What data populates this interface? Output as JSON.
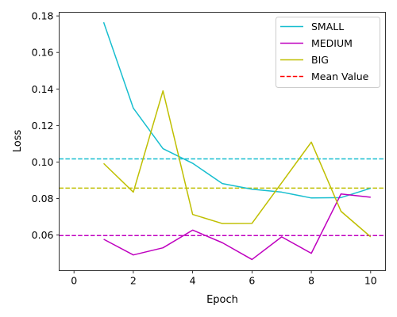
{
  "chart_data": {
    "type": "line",
    "title": "",
    "xlabel": "Epoch",
    "ylabel": "Loss",
    "xlim": [
      -0.5,
      10.5
    ],
    "ylim": [
      0.0405,
      0.182
    ],
    "x_ticks": [
      0,
      2,
      4,
      6,
      8,
      10
    ],
    "y_ticks": [
      0.06,
      0.08,
      0.1,
      0.12,
      0.14,
      0.16,
      0.18
    ],
    "y_tick_labels": [
      "0.06",
      "0.08",
      "0.10",
      "0.12",
      "0.14",
      "0.16",
      "0.18"
    ],
    "grid": false,
    "legend_placement": "top-right",
    "x": [
      1,
      2,
      3,
      4,
      5,
      6,
      7,
      8,
      9,
      10
    ],
    "series": [
      {
        "name": "SMALL",
        "color": "#17becf",
        "values": [
          0.1765,
          0.1295,
          0.1073,
          0.0993,
          0.0882,
          0.0851,
          0.0835,
          0.0803,
          0.0805,
          0.0856
        ]
      },
      {
        "name": "MEDIUM",
        "color": "#bf00bf",
        "values": [
          0.0577,
          0.0491,
          0.053,
          0.0627,
          0.0558,
          0.0466,
          0.059,
          0.05,
          0.0825,
          0.0807
        ]
      },
      {
        "name": "BIG",
        "color": "#bfbf00",
        "values": [
          0.0992,
          0.0835,
          0.139,
          0.0713,
          0.0663,
          0.0664,
          0.0886,
          0.1109,
          0.073,
          0.059
        ]
      }
    ],
    "mean_lines": [
      {
        "series": "SMALL",
        "value": 0.1017,
        "color": "#17becf"
      },
      {
        "series": "MEDIUM",
        "value": 0.0597,
        "color": "#bf00bf"
      },
      {
        "series": "BIG",
        "value": 0.0857,
        "color": "#bfbf00"
      }
    ],
    "mean_legend": {
      "name": "Mean Value",
      "color": "#ff0000"
    }
  }
}
